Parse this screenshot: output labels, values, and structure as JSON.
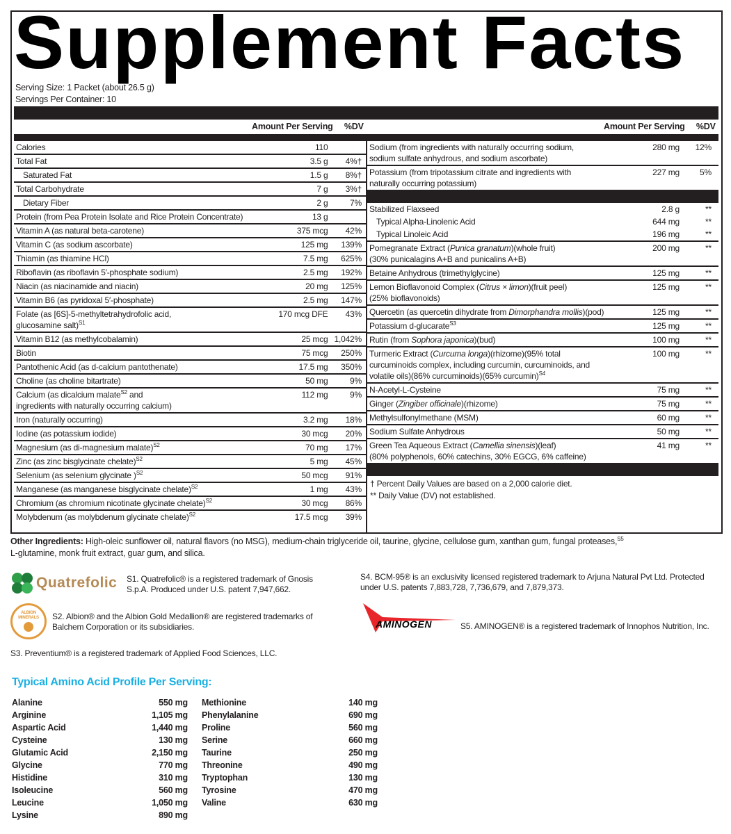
{
  "title": "Supplement Facts",
  "serving_size": "Serving Size: 1 Packet (about 26.5 g)",
  "servings_per_container": "Servings Per Container: 10",
  "column_headers": {
    "amount": "Amount Per Serving",
    "dv": "%DV"
  },
  "left_table": {
    "rows": [
      {
        "name": [
          {
            "text": "Calories"
          }
        ],
        "amount": "110",
        "dv": ""
      },
      {
        "name": [
          {
            "text": "Total Fat"
          }
        ],
        "amount": "3.5 g",
        "dv": "4%†"
      },
      {
        "name": [
          {
            "text": "Saturated Fat"
          }
        ],
        "amount": "1.5 g",
        "dv": "8%†",
        "indent": true
      },
      {
        "name": [
          {
            "text": "Total Carbohydrate"
          }
        ],
        "amount": "7 g",
        "dv": "3%†"
      },
      {
        "name": [
          {
            "text": "Dietary Fiber"
          }
        ],
        "amount": "2 g",
        "dv": "7%",
        "indent": true
      },
      {
        "name": [
          {
            "text": "Protein (from Pea Protein Isolate and Rice Protein Concentrate)"
          }
        ],
        "amount": "13 g",
        "dv": ""
      },
      {
        "name": [
          {
            "text": "Vitamin A (as natural beta-carotene)"
          }
        ],
        "amount": "375 mcg",
        "dv": "42%"
      },
      {
        "name": [
          {
            "text": "Vitamin C (as sodium ascorbate)"
          }
        ],
        "amount": "125 mg",
        "dv": "139%"
      },
      {
        "name": [
          {
            "text": "Thiamin (as thiamine HCl)"
          }
        ],
        "amount": "7.5 mg",
        "dv": "625%"
      },
      {
        "name": [
          {
            "text": "Riboflavin (as riboflavin 5′-phosphate sodium)"
          }
        ],
        "amount": "2.5 mg",
        "dv": "192%"
      },
      {
        "name": [
          {
            "text": "Niacin (as niacinamide and niacin)"
          }
        ],
        "amount": "20 mg",
        "dv": "125%"
      },
      {
        "name": [
          {
            "text": "Vitamin B6 (as pyridoxal 5′-phosphate)"
          }
        ],
        "amount": "2.5 mg",
        "dv": "147%"
      },
      {
        "name": [
          {
            "text": "Folate (as [6S]-5-methyltetrahydrofolic acid,\nglucosamine salt)"
          },
          {
            "text": "S1",
            "style": "sup"
          }
        ],
        "amount": "170 mcg DFE",
        "dv": "43%"
      },
      {
        "name": [
          {
            "text": "Vitamin B12 (as methylcobalamin)"
          }
        ],
        "amount": "25 mcg",
        "dv": "1,042%"
      },
      {
        "name": [
          {
            "text": "Biotin"
          }
        ],
        "amount": "75 mcg",
        "dv": "250%"
      },
      {
        "name": [
          {
            "text": "Pantothenic Acid (as d-calcium pantothenate)"
          }
        ],
        "amount": "17.5 mg",
        "dv": "350%"
      },
      {
        "name": [
          {
            "text": "Choline (as choline bitartrate)"
          }
        ],
        "amount": "50 mg",
        "dv": "9%"
      },
      {
        "name": [
          {
            "text": "Calcium (as dicalcium malate"
          },
          {
            "text": "S2",
            "style": "sup"
          },
          {
            "text": " and\ningredients with naturally occurring calcium)"
          }
        ],
        "amount": "112 mg",
        "dv": "9%"
      },
      {
        "name": [
          {
            "text": "Iron (naturally occurring)"
          }
        ],
        "amount": "3.2 mg",
        "dv": "18%"
      },
      {
        "name": [
          {
            "text": "Iodine (as potassium iodide)"
          }
        ],
        "amount": "30 mcg",
        "dv": "20%"
      },
      {
        "name": [
          {
            "text": "Magnesium (as di-magnesium malate)"
          },
          {
            "text": "S2",
            "style": "sup"
          }
        ],
        "amount": "70 mg",
        "dv": "17%"
      },
      {
        "name": [
          {
            "text": "Zinc (as zinc bisglycinate chelate)"
          },
          {
            "text": "S2",
            "style": "sup"
          }
        ],
        "amount": "5 mg",
        "dv": "45%"
      },
      {
        "name": [
          {
            "text": "Selenium (as selenium glycinate )"
          },
          {
            "text": "S2",
            "style": "sup"
          }
        ],
        "amount": "50 mcg",
        "dv": "91%"
      },
      {
        "name": [
          {
            "text": "Manganese (as manganese bisglycinate chelate)"
          },
          {
            "text": "S2",
            "style": "sup"
          }
        ],
        "amount": "1 mg",
        "dv": "43%"
      },
      {
        "name": [
          {
            "text": "Chromium (as chromium nicotinate glycinate chelate)"
          },
          {
            "text": "S2",
            "style": "sup"
          }
        ],
        "amount": "30 mcg",
        "dv": "86%"
      },
      {
        "name": [
          {
            "text": "Molybdenum (as molybdenum glycinate chelate)"
          },
          {
            "text": "S2",
            "style": "sup"
          }
        ],
        "amount": "17.5 mcg",
        "dv": "39%"
      }
    ]
  },
  "right_table": {
    "minerals": [
      {
        "name": [
          {
            "text": "Sodium (from ingredients with naturally occurring sodium,\nsodium sulfate anhydrous, and sodium ascorbate)"
          }
        ],
        "amount": "280 mg",
        "dv": "12%"
      },
      {
        "name": [
          {
            "text": "Potassium (from tripotassium citrate and ingredients with\nnaturally occurring potassium)"
          }
        ],
        "amount": "227 mg",
        "dv": "5%"
      }
    ],
    "other": [
      {
        "name": [
          {
            "text": "Stabilized Flaxseed"
          }
        ],
        "amount": "2.8 g",
        "dv": "**"
      },
      {
        "name": [
          {
            "text": "Typical Alpha-Linolenic Acid"
          }
        ],
        "amount": "644 mg",
        "dv": "**",
        "indent": true,
        "sub": true
      },
      {
        "name": [
          {
            "text": "Typical Linoleic Acid"
          }
        ],
        "amount": "196 mg",
        "dv": "**",
        "indent": true,
        "sub": true
      },
      {
        "name": [
          {
            "text": "Pomegranate Extract ("
          },
          {
            "text": "Punica granatum",
            "style": "italic"
          },
          {
            "text": ")(whole fruit)\n(30% punicalagins A+B and punicalins A+B)"
          }
        ],
        "amount": "200 mg",
        "dv": "**"
      },
      {
        "name": [
          {
            "text": "Betaine Anhydrous (trimethylglycine)"
          }
        ],
        "amount": "125 mg",
        "dv": "**"
      },
      {
        "name": [
          {
            "text": "Lemon Bioflavonoid Complex ("
          },
          {
            "text": "Citrus × limon",
            "style": "italic"
          },
          {
            "text": ")(fruit peel)\n(25% bioflavonoids)"
          }
        ],
        "amount": "125 mg",
        "dv": "**"
      },
      {
        "name": [
          {
            "text": "Quercetin (as quercetin dihydrate from "
          },
          {
            "text": "Dimorphandra mollis",
            "style": "italic"
          },
          {
            "text": ")(pod)"
          }
        ],
        "amount": "125 mg",
        "dv": "**"
      },
      {
        "name": [
          {
            "text": "Potassium d-glucarate"
          },
          {
            "text": "S3",
            "style": "sup"
          }
        ],
        "amount": "125 mg",
        "dv": "**"
      },
      {
        "name": [
          {
            "text": "Rutin (from "
          },
          {
            "text": "Sophora japonica",
            "style": "italic"
          },
          {
            "text": ")(bud)"
          }
        ],
        "amount": "100 mg",
        "dv": "**"
      },
      {
        "name": [
          {
            "text": "Turmeric Extract ("
          },
          {
            "text": "Curcuma longa",
            "style": "italic"
          },
          {
            "text": ")(rhizome)(95% total\ncurcuminoids complex, including curcumin, curcuminoids, and\nvolatile oils)(86% curcuminoids)(65% curcumin)"
          },
          {
            "text": "S4",
            "style": "sup"
          }
        ],
        "amount": "100 mg",
        "dv": "**"
      },
      {
        "name": [
          {
            "text": "N-Acetyl-L-Cysteine"
          }
        ],
        "amount": "75 mg",
        "dv": "**"
      },
      {
        "name": [
          {
            "text": "Ginger ("
          },
          {
            "text": "Zingiber officinale",
            "style": "italic"
          },
          {
            "text": ")(rhizome)"
          }
        ],
        "amount": "75 mg",
        "dv": "**"
      },
      {
        "name": [
          {
            "text": "Methylsulfonylmethane (MSM)"
          }
        ],
        "amount": "60 mg",
        "dv": "**"
      },
      {
        "name": [
          {
            "text": "Sodium Sulfate Anhydrous"
          }
        ],
        "amount": "50 mg",
        "dv": "**"
      },
      {
        "name": [
          {
            "text": "Green Tea Aqueous Extract ("
          },
          {
            "text": "Camellia sinensis",
            "style": "italic"
          },
          {
            "text": ")(leaf)\n(80% polyphenols, 60% catechins, 30% EGCG, 6% caffeine)"
          }
        ],
        "amount": "41 mg",
        "dv": "**"
      }
    ],
    "footnotes": [
      "† Percent Daily Values are based on a 2,000 calorie diet.",
      "** Daily Value (DV) not established."
    ]
  },
  "other_ingredients": {
    "label": "Other Ingredients:",
    "text": " High-oleic sunflower oil, natural flavors (no MSG), medium-chain triglyceride oil, taurine, glycine, cellulose gum, xanthan gum, fungal proteases,",
    "sup": "S5",
    "text2": "L-glutamine, monk fruit extract, guar gum, and silica."
  },
  "trademarks": {
    "quatrefolic_logo": "Quatrefolic",
    "s1": "S1. Quatrefolic® is a registered trademark of Gnosis\nS.p.A. Produced under U.S. patent 7,947,662.",
    "albion_logo": "ALBION MINERALS",
    "s2": "S2. Albion® and the Albion Gold Medallion® are registered trademarks of\nBalchem Corporation or its subsidiaries.",
    "s3": "S3. Preventium® is a registered trademark of Applied Food Sciences, LLC.",
    "s4": "S4. BCM-95® is an exclusivity licensed registered trademark to Arjuna Natural Pvt Ltd. Protected\nunder U.S. patents 7,883,728, 7,736,679, and 7,879,373.",
    "aminogen_logo": "AMINOGEN",
    "s5": "S5. AMINOGEN® is a registered trademark of Innophos Nutrition, Inc."
  },
  "amino_acids": {
    "title": "Typical Amino Acid Profile Per Serving:",
    "title_color": "#1ab0e2",
    "left": [
      {
        "name": "Alanine",
        "amount": "550 mg"
      },
      {
        "name": "Arginine",
        "amount": "1,105 mg"
      },
      {
        "name": "Aspartic Acid",
        "amount": "1,440 mg"
      },
      {
        "name": "Cysteine",
        "amount": "130 mg"
      },
      {
        "name": "Glutamic Acid",
        "amount": "2,150 mg"
      },
      {
        "name": "Glycine",
        "amount": "770 mg"
      },
      {
        "name": "Histidine",
        "amount": "310 mg"
      },
      {
        "name": "Isoleucine",
        "amount": "560 mg"
      },
      {
        "name": "Leucine",
        "amount": "1,050 mg"
      },
      {
        "name": "Lysine",
        "amount": "890 mg"
      }
    ],
    "right": [
      {
        "name": "Methionine",
        "amount": "140 mg"
      },
      {
        "name": "Phenylalanine",
        "amount": "690 mg"
      },
      {
        "name": "Proline",
        "amount": "560 mg"
      },
      {
        "name": "Serine",
        "amount": "660 mg"
      },
      {
        "name": "Taurine",
        "amount": "250 mg"
      },
      {
        "name": "Threonine",
        "amount": "490 mg"
      },
      {
        "name": "Tryptophan",
        "amount": "130 mg"
      },
      {
        "name": "Tyrosine",
        "amount": "470 mg"
      },
      {
        "name": "Valine",
        "amount": "630 mg"
      }
    ]
  }
}
